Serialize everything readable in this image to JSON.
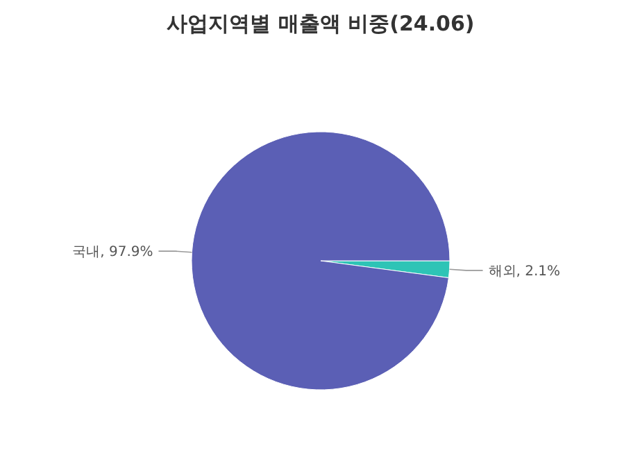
{
  "chart_data": {
    "type": "pie",
    "title": "사업지역별 매출액 비중(24.06)",
    "categories": [
      "해외",
      "국내"
    ],
    "values": [
      2.1,
      97.9
    ],
    "colors": [
      "#2ec4b6",
      "#5b5fb5"
    ],
    "value_labels": [
      "2.1%",
      "97.9%"
    ]
  }
}
